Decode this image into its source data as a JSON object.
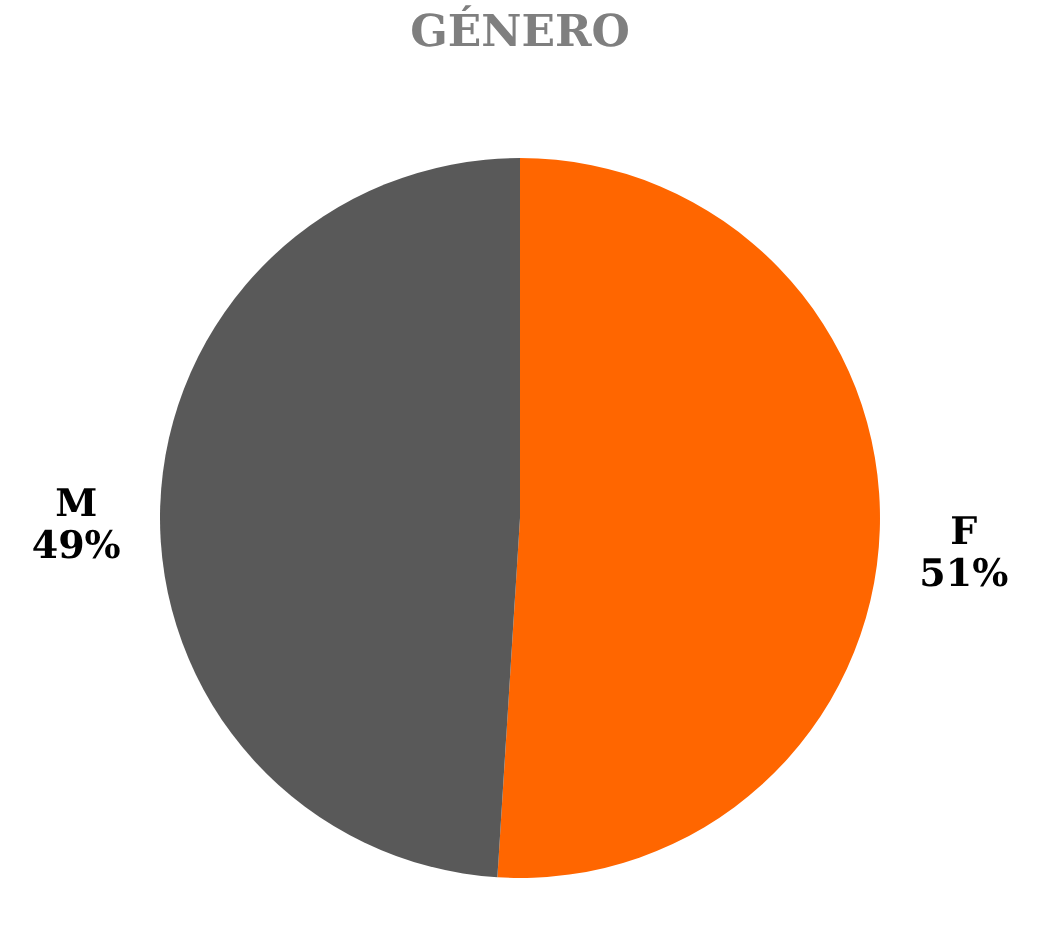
{
  "chart_data": {
    "type": "pie",
    "title": "GÉNERO",
    "categories": [
      "F",
      "M"
    ],
    "values": [
      51,
      49
    ],
    "value_labels": [
      "51%",
      "49%"
    ],
    "colors": [
      "#ff6600",
      "#595959"
    ],
    "legend": false
  }
}
